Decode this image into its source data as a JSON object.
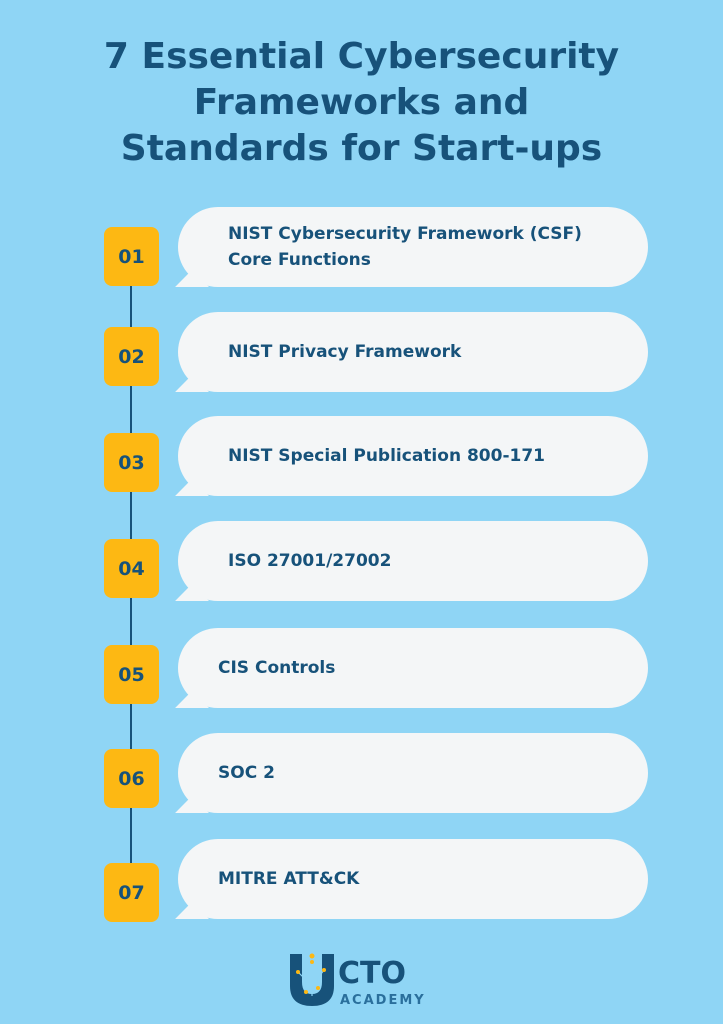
{
  "title": [
    "7 Essential Cybersecurity",
    "Frameworks and",
    "Standards for Start-ups"
  ],
  "colors": {
    "background": "#8fd5f5",
    "accent": "#fdb813",
    "text": "#17527a",
    "bubble": "#f4f6f7"
  },
  "items": [
    {
      "number": "01",
      "lines": [
        "NIST Cybersecurity Framework (CSF)",
        "Core Functions"
      ]
    },
    {
      "number": "02",
      "lines": [
        "NIST Privacy Framework"
      ]
    },
    {
      "number": "03",
      "lines": [
        "NIST Special Publication 800-171"
      ]
    },
    {
      "number": "04",
      "lines": [
        "ISO 27001/27002"
      ]
    },
    {
      "number": "05",
      "lines": [
        "CIS Controls"
      ]
    },
    {
      "number": "06",
      "lines": [
        "SOC 2"
      ]
    },
    {
      "number": "07",
      "lines": [
        "MITRE ATT&CK"
      ]
    }
  ],
  "logo": {
    "main": "CTO",
    "sub": "ACADEMY"
  }
}
